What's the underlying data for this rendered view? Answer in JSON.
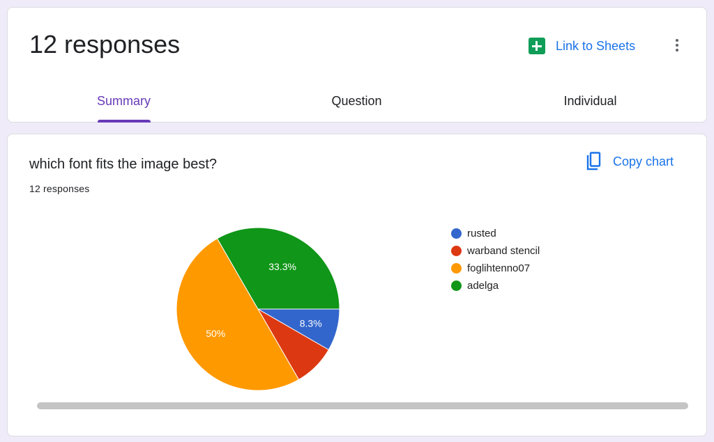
{
  "header": {
    "responses_title": "12 responses",
    "link_to_sheets": "Link to Sheets",
    "tabs": [
      {
        "label": "Summary",
        "active": true
      },
      {
        "label": "Question",
        "active": false
      },
      {
        "label": "Individual",
        "active": false
      }
    ]
  },
  "icons": {
    "sheets": "google-sheets-icon",
    "more": "more-vert-icon",
    "copy": "copy-icon"
  },
  "colors": {
    "accent": "#673ab7",
    "link": "#1a73e8",
    "background": "#f0ebf8"
  },
  "question": {
    "title": "which font fits the image best?",
    "responses": "12 responses",
    "copy_chart": "Copy chart"
  },
  "chart_data": {
    "type": "pie",
    "categories": [
      "rusted",
      "warband stencil",
      "foglihtenno07",
      "adelga"
    ],
    "values": [
      1,
      1,
      6,
      4
    ],
    "percent_labels": [
      "8.3%",
      "",
      "50%",
      "33.3%"
    ],
    "colors": [
      "#3366cc",
      "#dc3912",
      "#ff9900",
      "#109618"
    ],
    "legend": "right"
  }
}
